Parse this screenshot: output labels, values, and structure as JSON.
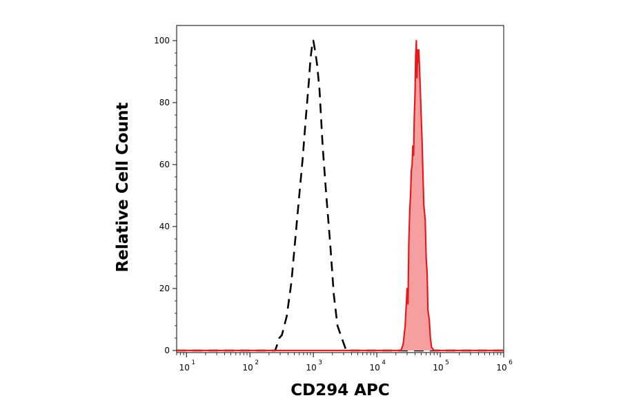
{
  "chart_data": {
    "type": "area",
    "xlabel": "CD294 APC",
    "ylabel": "Relative Cell Count",
    "xscale": "log",
    "xlim": [
      7,
      1000000
    ],
    "ylim": [
      0,
      102
    ],
    "grid": false,
    "y_ticks": [
      {
        "value": 0,
        "label": "0"
      },
      {
        "value": 20,
        "label": "20"
      },
      {
        "value": 40,
        "label": "40"
      },
      {
        "value": 60,
        "label": "60"
      },
      {
        "value": 80,
        "label": "80"
      },
      {
        "value": 100,
        "label": "100"
      }
    ],
    "x_ticks": [
      {
        "value": 10,
        "base": "10",
        "exp": "1"
      },
      {
        "value": 100,
        "base": "10",
        "exp": "2"
      },
      {
        "value": 1000,
        "base": "10",
        "exp": "3"
      },
      {
        "value": 10000,
        "base": "10",
        "exp": "4"
      },
      {
        "value": 100000,
        "base": "10",
        "exp": "5"
      },
      {
        "value": 1000000,
        "base": "10",
        "exp": "6"
      }
    ],
    "series": [
      {
        "style": "dashed",
        "color": "#000000",
        "fill": "none",
        "x": [
          7,
          250,
          270,
          290,
          320,
          380,
          450,
          530,
          600,
          680,
          760,
          850,
          900,
          950,
          1000,
          1040,
          1080,
          1150,
          1250,
          1400,
          1600,
          1850,
          2100,
          2400,
          2800,
          3300,
          1000000
        ],
        "y": [
          0,
          0,
          2,
          4,
          5,
          11,
          22,
          38,
          50,
          62,
          75,
          87,
          94,
          98,
          100,
          98,
          96,
          92,
          84,
          66,
          50,
          34,
          18,
          8,
          4,
          0,
          0
        ]
      },
      {
        "style": "solid",
        "color": "#e41a1c",
        "fill": "#f59fa0",
        "x": [
          7,
          24000,
          26000,
          28000,
          30000,
          31000,
          32000,
          33000,
          34000,
          35000,
          36000,
          37000,
          38000,
          39000,
          40000,
          41000,
          42000,
          43000,
          44000,
          45000,
          46000,
          47000,
          48000,
          50000,
          52000,
          55000,
          58000,
          60000,
          62000,
          64000,
          67000,
          70000,
          73000,
          80000,
          1000000
        ],
        "y": [
          0,
          0,
          2,
          8,
          20,
          15,
          35,
          45,
          50,
          58,
          60,
          66,
          63,
          75,
          83,
          95,
          100,
          88,
          97,
          93,
          97,
          92,
          87,
          76,
          66,
          47,
          42,
          30,
          25,
          13,
          10,
          4,
          1,
          0,
          0
        ]
      }
    ]
  }
}
